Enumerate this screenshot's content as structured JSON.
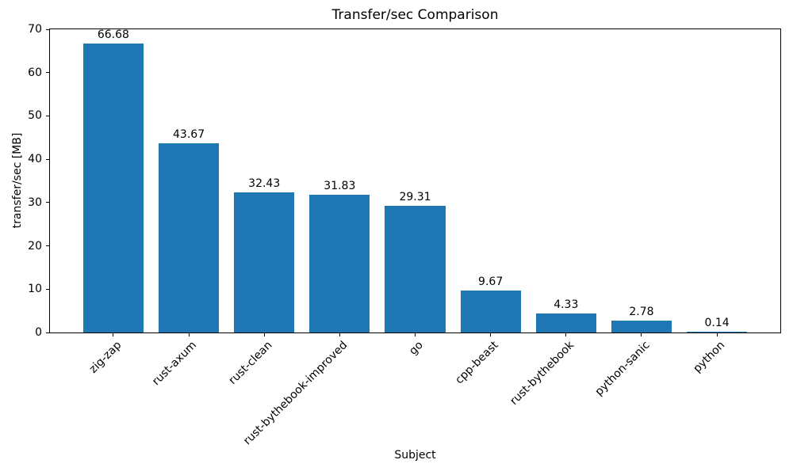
{
  "chart_data": {
    "type": "bar",
    "title": "Transfer/sec Comparison",
    "xlabel": "Subject",
    "ylabel": "transfer/sec [MB]",
    "categories": [
      "zig-zap",
      "rust-axum",
      "rust-clean",
      "rust-bythebook-improved",
      "go",
      "cpp-beast",
      "rust-bythebook",
      "python-sanic",
      "python"
    ],
    "values": [
      66.68,
      43.67,
      32.43,
      31.83,
      29.31,
      9.67,
      4.33,
      2.78,
      0.14
    ],
    "value_labels": [
      "66.68",
      "43.67",
      "32.43",
      "31.83",
      "29.31",
      "9.67",
      "4.33",
      "2.78",
      "0.14"
    ],
    "ylim": [
      0,
      70
    ],
    "yticks": [
      0,
      10,
      20,
      30,
      40,
      50,
      60,
      70
    ],
    "bar_color": "#1f77b4",
    "bar_width_fraction": 0.8,
    "x_tick_rotation_deg": 45,
    "grid": false,
    "legend_position": "none"
  }
}
